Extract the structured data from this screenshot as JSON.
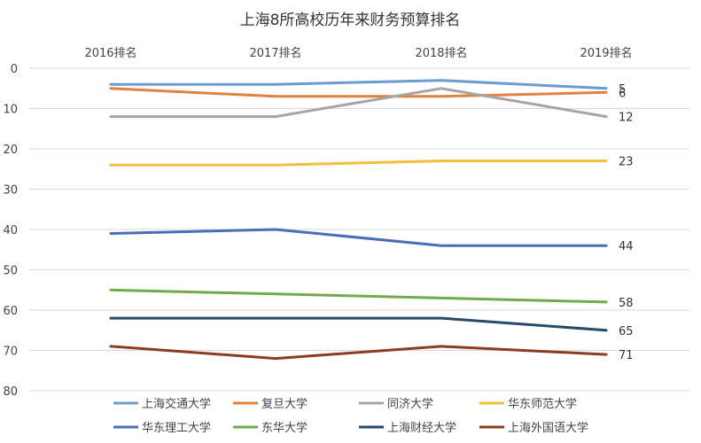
{
  "chart_data": {
    "type": "line",
    "title": "上海8所高校历年来财务预算排名",
    "categories": [
      "2016排名",
      "2017排名",
      "2018排名",
      "2019排名"
    ],
    "ylim": [
      0,
      80
    ],
    "y_reversed": true,
    "y_ticks": [
      0,
      10,
      20,
      30,
      40,
      50,
      60,
      70,
      80
    ],
    "grid": true,
    "legend_position": "bottom",
    "series": [
      {
        "name": "上海交通大学",
        "color": "#6C9BCF",
        "values": [
          4,
          4,
          3,
          5
        ]
      },
      {
        "name": "复旦大学",
        "color": "#E08142",
        "values": [
          5,
          7,
          7,
          6
        ]
      },
      {
        "name": "同济大学",
        "color": "#A5A5A5",
        "values": [
          12,
          12,
          5,
          12
        ]
      },
      {
        "name": "华东师范大学",
        "color": "#F3BE3D",
        "values": [
          24,
          24,
          23,
          23
        ]
      },
      {
        "name": "华东理工大学",
        "color": "#4A6EB5",
        "values": [
          41,
          40,
          44,
          44
        ]
      },
      {
        "name": "东华大学",
        "color": "#70AA4B",
        "values": [
          55,
          56,
          57,
          58
        ]
      },
      {
        "name": "上海财经大学",
        "color": "#264A6B",
        "values": [
          62,
          62,
          62,
          65
        ]
      },
      {
        "name": "上海外国语大学",
        "color": "#8C3D1F",
        "values": [
          69,
          72,
          69,
          71
        ]
      }
    ]
  }
}
